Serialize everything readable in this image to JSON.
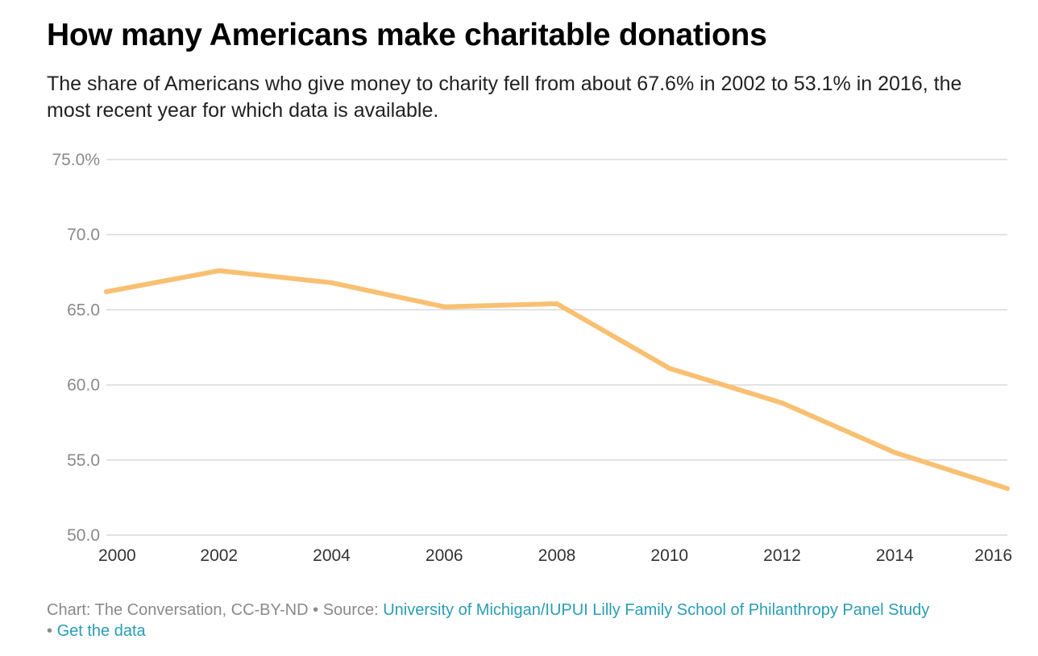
{
  "title": "How many Americans make charitable donations",
  "subtitle": "The share of Americans who give money to charity fell from about 67.6% in 2002 to 53.1% in 2016, the most recent year for which data is available.",
  "footer": {
    "credit": "Chart: The Conversation, CC-BY-ND",
    "separator": "•",
    "source_prefix": "Source:",
    "source_link": "University of Michigan/IUPUI Lilly Family School of Philanthropy Panel Study",
    "data_link": "Get the data"
  },
  "colors": {
    "line": "#f8c073",
    "grid": "#d9d9d9",
    "tick_text": "#8a8a8a",
    "x_tick_text": "#333333"
  },
  "chart_data": {
    "type": "line",
    "title": "How many Americans make charitable donations",
    "xlabel": "",
    "ylabel": "",
    "x": [
      2000,
      2002,
      2004,
      2006,
      2008,
      2010,
      2012,
      2014,
      2016
    ],
    "values": [
      66.2,
      67.6,
      66.8,
      65.2,
      65.4,
      61.1,
      58.8,
      55.5,
      53.1
    ],
    "xlim": [
      2000,
      2016
    ],
    "ylim": [
      50,
      75
    ],
    "y_ticks": [
      50,
      55,
      60,
      65,
      70,
      75
    ],
    "y_tick_labels": [
      "50.0",
      "55.0",
      "60.0",
      "65.0",
      "70.0",
      "75.0%"
    ],
    "x_tick_labels": [
      "2000",
      "2002",
      "2004",
      "2006",
      "2008",
      "2010",
      "2012",
      "2014",
      "2016"
    ],
    "grid": true,
    "legend": "none"
  }
}
